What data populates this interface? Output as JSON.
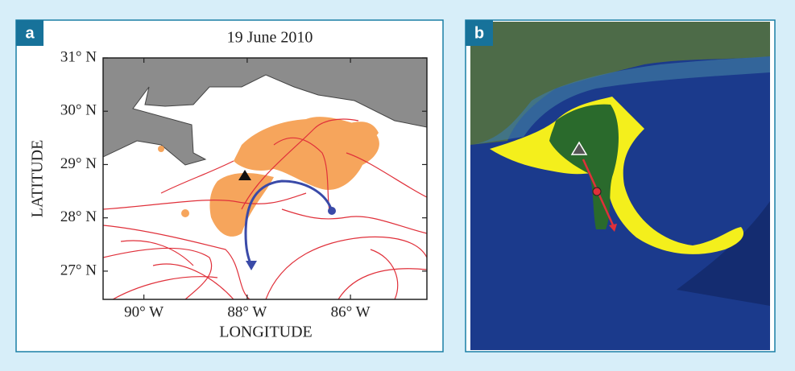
{
  "panels": [
    {
      "label": "a",
      "title": "19 June 2010",
      "y_axis": {
        "label": "LATITUDE",
        "lim": [
          26.47,
          31
        ],
        "ticks": [
          {
            "value": 31,
            "label": "31° N"
          },
          {
            "value": 30,
            "label": "30° N"
          },
          {
            "value": 29,
            "label": "29° N"
          },
          {
            "value": 28,
            "label": "28° N"
          },
          {
            "value": 27,
            "label": "27° N"
          }
        ]
      },
      "x_axis": {
        "label": "LONGITUDE",
        "lim": [
          -90.79,
          -84.52
        ],
        "ticks": [
          {
            "value": -90,
            "label": "90° W"
          },
          {
            "value": -88,
            "label": "88° W"
          },
          {
            "value": -86,
            "label": "86° W"
          }
        ]
      }
    },
    {
      "label": "b"
    }
  ]
}
